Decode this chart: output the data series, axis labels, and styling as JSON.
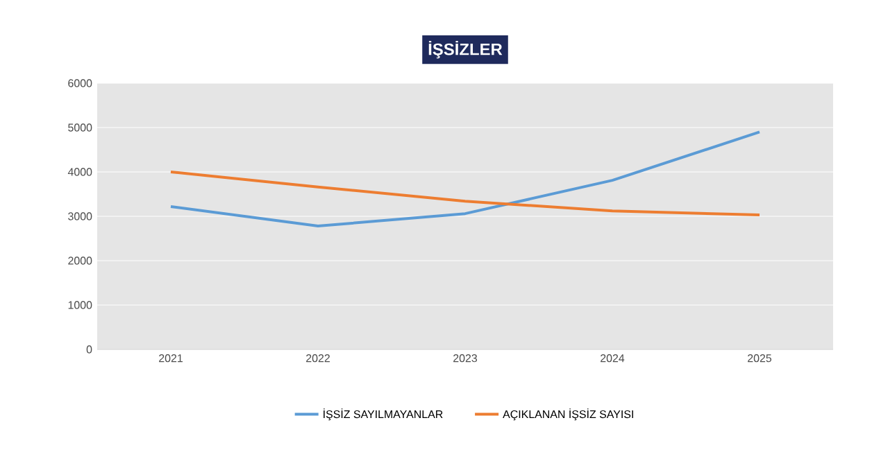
{
  "chart_data": {
    "type": "line",
    "title": "İŞSİZLER",
    "categories": [
      "2021",
      "2022",
      "2023",
      "2024",
      "2025"
    ],
    "series": [
      {
        "name": "İŞSİZ SAYILMAYANLAR",
        "color": "#5b9bd5",
        "values": [
          3220,
          2780,
          3060,
          3810,
          4900
        ]
      },
      {
        "name": "AÇIKLANAN İŞSİZ SAYISI",
        "color": "#ed7d31",
        "values": [
          4000,
          3660,
          3340,
          3120,
          3030
        ]
      }
    ],
    "ylim": [
      0,
      6000
    ],
    "yticks": [
      0,
      1000,
      2000,
      3000,
      4000,
      5000,
      6000
    ],
    "grid": "y",
    "legend": "bottom",
    "marker": "none",
    "line_style": "solid"
  }
}
